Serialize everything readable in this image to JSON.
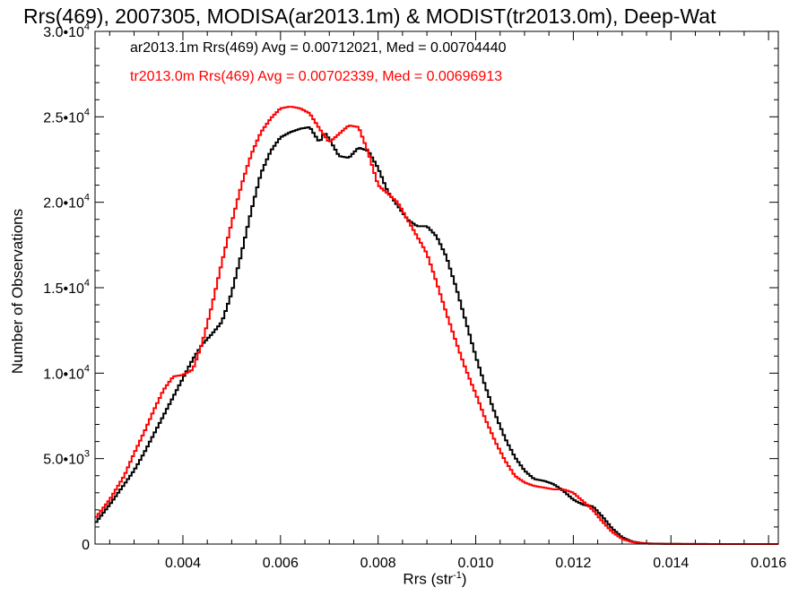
{
  "chart_data": {
    "type": "line",
    "title": "Rrs(469), 2007305, MODISA(ar2013.1m) & MODIST(tr2013.0m), Deep-Wat",
    "xlabel_main": "Rrs (str",
    "xlabel_sup": "-1",
    "xlabel_tail": ")",
    "ylabel": "Number of Observations",
    "xlim": [
      0.0022,
      0.0162
    ],
    "ylim": [
      0,
      30000
    ],
    "xticks": [
      0.004,
      0.006,
      0.008,
      0.01,
      0.012,
      0.014,
      0.016
    ],
    "xtick_labels": [
      "0.004",
      "0.006",
      "0.008",
      "0.010",
      "0.012",
      "0.014",
      "0.016"
    ],
    "yticks": [
      {
        "value": 0,
        "mant": "0",
        "exp": ""
      },
      {
        "value": 5000,
        "mant": "5.0•10",
        "exp": "3"
      },
      {
        "value": 10000,
        "mant": "1.0•10",
        "exp": "4"
      },
      {
        "value": 15000,
        "mant": "1.5•10",
        "exp": "4"
      },
      {
        "value": 20000,
        "mant": "2.0•10",
        "exp": "4"
      },
      {
        "value": 25000,
        "mant": "2.5•10",
        "exp": "4"
      },
      {
        "value": 30000,
        "mant": "3.0•10",
        "exp": "4"
      }
    ],
    "grid": false,
    "legend": "top-left annotations",
    "annotations": [
      "ar2013.1m Rrs(469) Avg = 0.00712021, Med = 0.00704440",
      "tr2013.0m Rrs(469) Avg = 0.00702339, Med = 0.00696913"
    ],
    "series": [
      {
        "name": "ar2013.1m",
        "color": "#000000",
        "x": [
          0.0022,
          0.0025,
          0.0028,
          0.003,
          0.0032,
          0.0034,
          0.0036,
          0.0038,
          0.004,
          0.0042,
          0.0044,
          0.0046,
          0.0048,
          0.005,
          0.0052,
          0.0054,
          0.0056,
          0.0058,
          0.006,
          0.0062,
          0.0064,
          0.0066,
          0.0068,
          0.0069,
          0.007,
          0.0072,
          0.0074,
          0.0076,
          0.0078,
          0.008,
          0.0082,
          0.0084,
          0.0086,
          0.0088,
          0.009,
          0.0092,
          0.0094,
          0.0096,
          0.0098,
          0.01,
          0.0102,
          0.0104,
          0.0106,
          0.0108,
          0.011,
          0.0112,
          0.0114,
          0.0116,
          0.0118,
          0.012,
          0.0122,
          0.0124,
          0.0126,
          0.0128,
          0.013,
          0.0132,
          0.0134,
          0.0136,
          0.014,
          0.015,
          0.0162
        ],
        "y": [
          1200,
          2300,
          3500,
          4300,
          5300,
          6400,
          7500,
          8600,
          9700,
          10800,
          11700,
          12300,
          13000,
          14700,
          17000,
          19500,
          21700,
          23000,
          23800,
          24100,
          24300,
          24400,
          23500,
          24100,
          23700,
          22700,
          22600,
          23200,
          23000,
          22000,
          20600,
          19800,
          19000,
          18600,
          18600,
          18000,
          16800,
          15000,
          13000,
          11000,
          9200,
          7600,
          6200,
          5100,
          4300,
          3800,
          3700,
          3500,
          3100,
          2600,
          2300,
          2200,
          1600,
          900,
          400,
          150,
          60,
          30,
          10,
          0,
          0
        ]
      },
      {
        "name": "tr2013.0m",
        "color": "#ff0000",
        "x": [
          0.0022,
          0.0025,
          0.0028,
          0.003,
          0.0032,
          0.0034,
          0.0036,
          0.0038,
          0.004,
          0.0042,
          0.0044,
          0.0046,
          0.0048,
          0.005,
          0.0052,
          0.0054,
          0.0056,
          0.0058,
          0.006,
          0.0062,
          0.0064,
          0.0066,
          0.0068,
          0.007,
          0.0072,
          0.0074,
          0.0076,
          0.0078,
          0.008,
          0.0082,
          0.0084,
          0.0086,
          0.0088,
          0.009,
          0.0092,
          0.0094,
          0.0096,
          0.0098,
          0.01,
          0.0102,
          0.0104,
          0.0106,
          0.0108,
          0.011,
          0.0112,
          0.0114,
          0.0116,
          0.0118,
          0.012,
          0.0122,
          0.0124,
          0.0126,
          0.0128,
          0.013,
          0.0132,
          0.0134,
          0.0136,
          0.014,
          0.015,
          0.0162
        ],
        "y": [
          1500,
          2600,
          4000,
          5300,
          6500,
          7800,
          9000,
          9800,
          9900,
          10200,
          11800,
          14000,
          16500,
          18800,
          21000,
          22800,
          24100,
          24900,
          25500,
          25600,
          25500,
          25200,
          24300,
          23500,
          24000,
          24500,
          24400,
          22900,
          21000,
          20500,
          20000,
          19000,
          18000,
          17000,
          15300,
          13500,
          11800,
          10200,
          8800,
          7300,
          6000,
          4900,
          4000,
          3600,
          3400,
          3300,
          3200,
          3200,
          3000,
          2500,
          2000,
          1300,
          700,
          300,
          120,
          40,
          15,
          5,
          0,
          0
        ]
      }
    ]
  }
}
